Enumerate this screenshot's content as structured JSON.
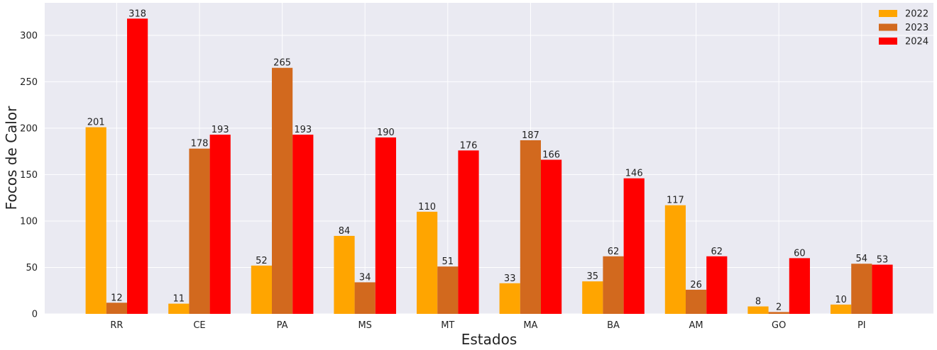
{
  "chart_data": {
    "type": "bar",
    "title": "",
    "xlabel": "Estados",
    "ylabel": "Focos de Calor",
    "categories": [
      "RR",
      "CE",
      "PA",
      "MS",
      "MT",
      "MA",
      "BA",
      "AM",
      "GO",
      "PI"
    ],
    "series": [
      {
        "name": "2022",
        "color": "#ffa500",
        "values": [
          201,
          11,
          52,
          84,
          110,
          33,
          35,
          117,
          8,
          10
        ]
      },
      {
        "name": "2023",
        "color": "#d2691e",
        "values": [
          12,
          178,
          265,
          34,
          51,
          187,
          62,
          26,
          2,
          54
        ]
      },
      {
        "name": "2024",
        "color": "#ff0000",
        "values": [
          318,
          193,
          193,
          190,
          176,
          166,
          146,
          62,
          60,
          53
        ]
      }
    ],
    "ylim": [
      0,
      335
    ],
    "yticks": [
      0,
      50,
      100,
      150,
      200,
      250,
      300
    ],
    "grid": true,
    "legend_position": "top-right",
    "background_color": "#eaeaf2",
    "grid_color": "#ffffff",
    "show_data_labels": true
  }
}
